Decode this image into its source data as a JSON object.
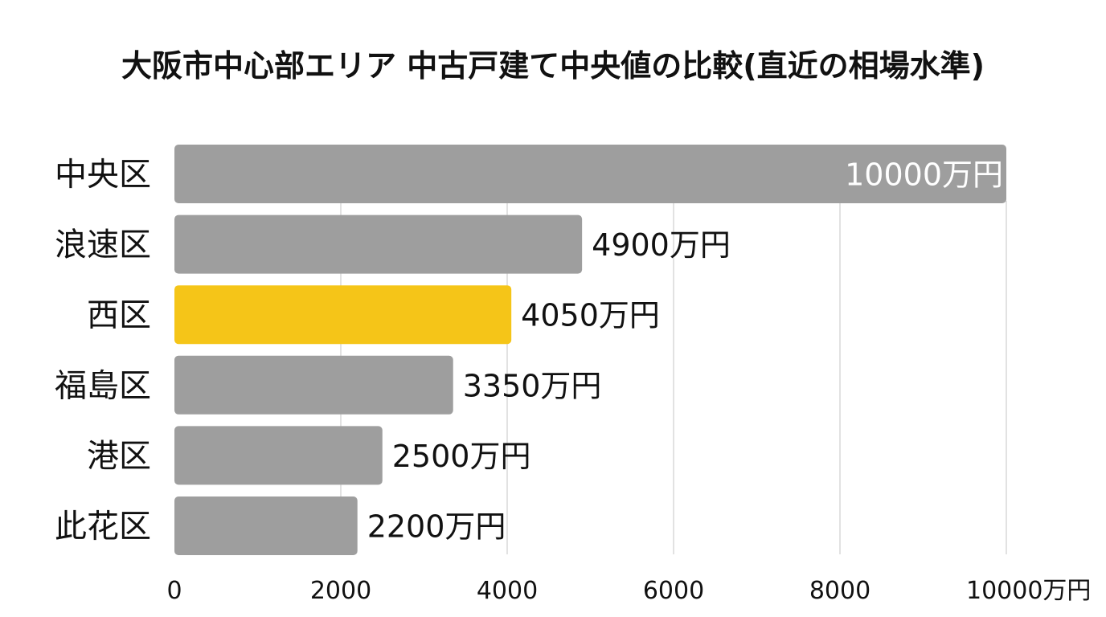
{
  "chart_data": {
    "type": "bar",
    "orientation": "horizontal",
    "title": "大阪市中心部エリア 中古戸建て中央値の比較(直近の相場水準)",
    "categories": [
      "中央区",
      "浪速区",
      "西区",
      "福島区",
      "港区",
      "此花区"
    ],
    "values": [
      10000,
      4900,
      4050,
      3350,
      2500,
      2200
    ],
    "value_labels": [
      "10000万円",
      "4900万円",
      "4050万円",
      "3350万円",
      "2500万円",
      "2200万円"
    ],
    "highlight_category": "西区",
    "xlim": [
      0,
      10000
    ],
    "x_ticks": [
      0,
      2000,
      4000,
      6000,
      8000,
      10000
    ],
    "x_tick_labels": [
      "0",
      "2000",
      "4000",
      "6000",
      "8000",
      "10000万円"
    ],
    "xlabel": "",
    "ylabel": "",
    "grid": "vertical",
    "legend": "none",
    "colors": {
      "bar": "#9e9e9e",
      "highlight": "#f5c518",
      "grid": "#d9d9d9",
      "text": "#111111",
      "inside_label": "#ffffff"
    }
  }
}
